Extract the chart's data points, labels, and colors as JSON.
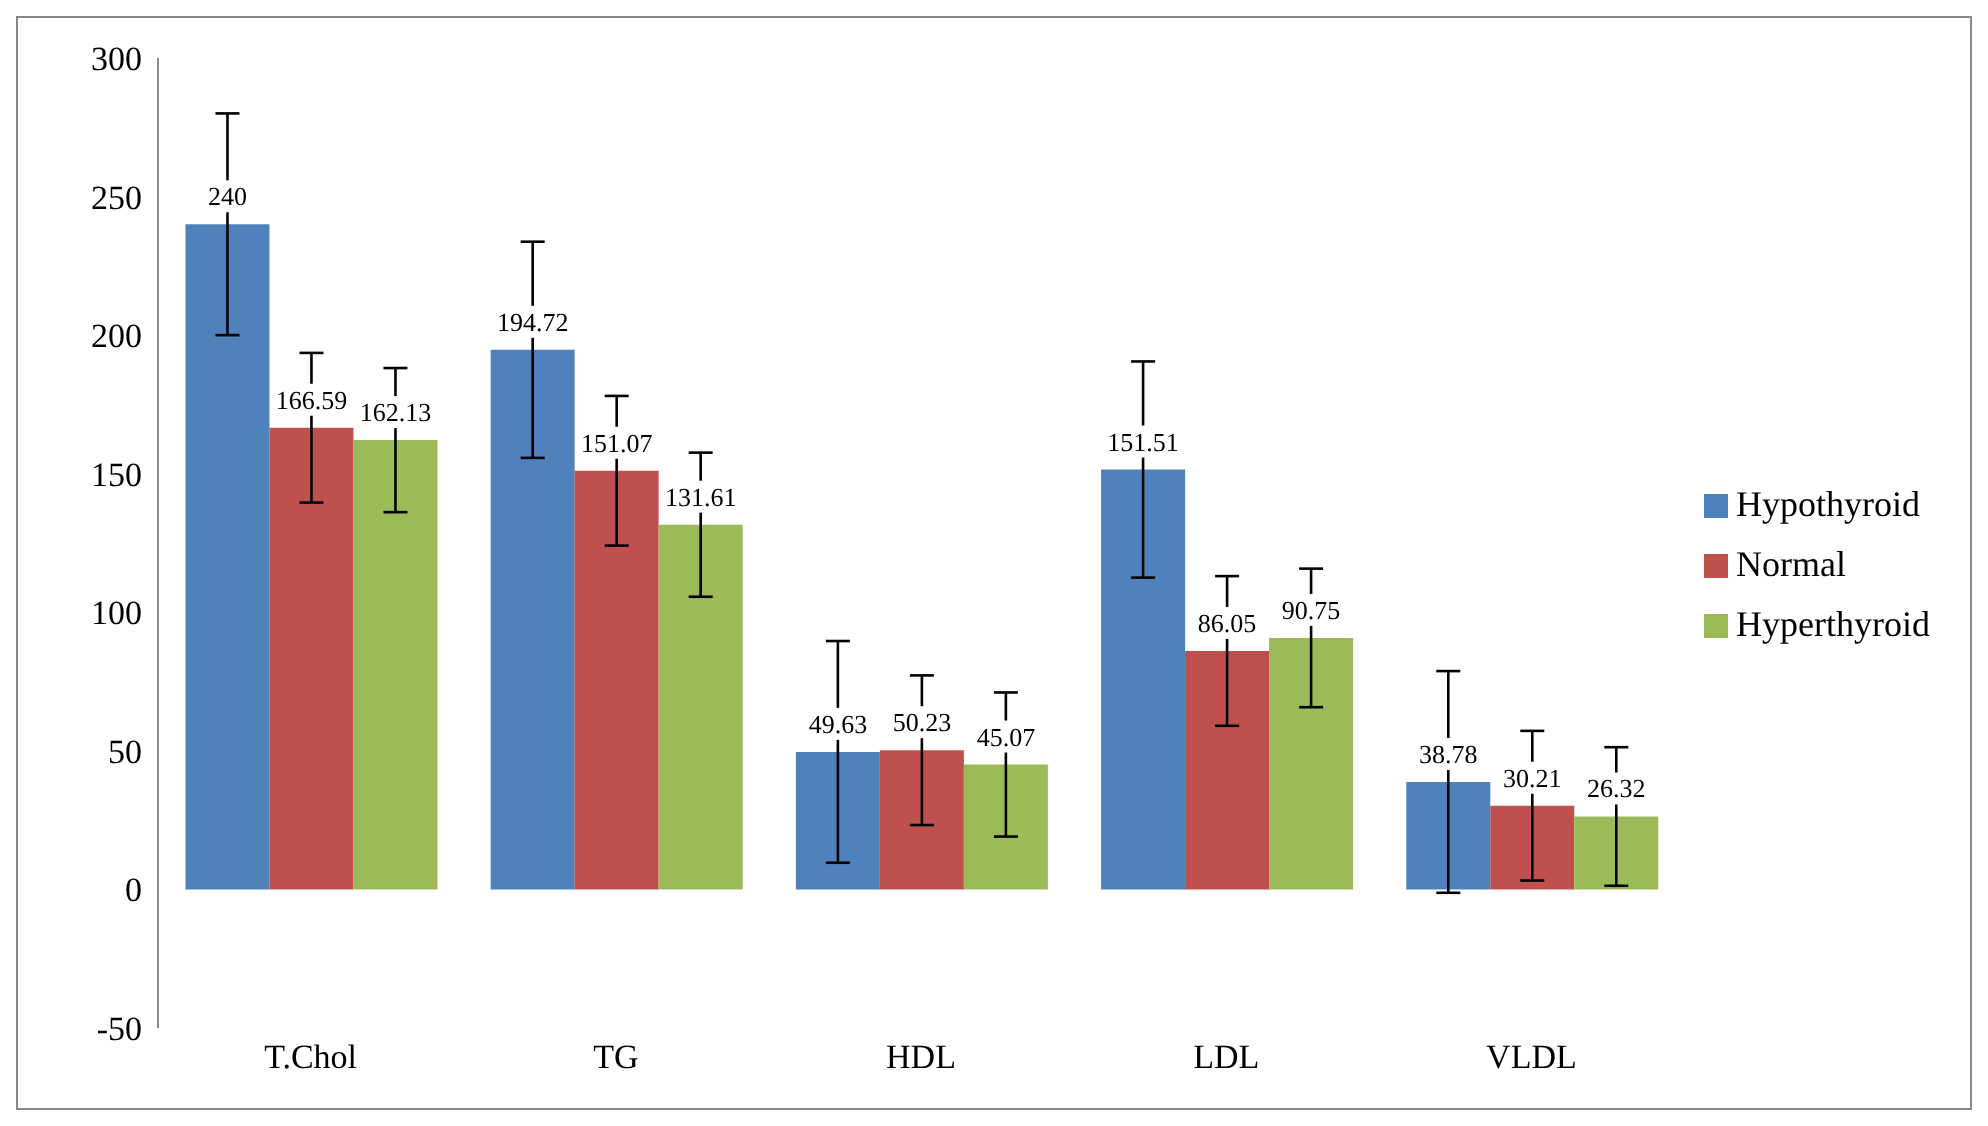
{
  "chart_data": {
    "type": "bar",
    "categories": [
      "T.Chol",
      "TG",
      "HDL",
      "LDL",
      "VLDL"
    ],
    "series": [
      {
        "name": "Hypothyroid",
        "color": "#4f81bd",
        "values": [
          240,
          194.72,
          49.63,
          151.51,
          38.78
        ],
        "errors": [
          40,
          39,
          40,
          39,
          40
        ]
      },
      {
        "name": "Normal",
        "color": "#c0504d",
        "values": [
          166.59,
          151.07,
          50.23,
          86.05,
          30.21
        ],
        "errors": [
          27,
          27,
          27,
          27,
          27
        ]
      },
      {
        "name": "Hyperthyroid",
        "color": "#9bbb59",
        "values": [
          162.13,
          131.61,
          45.07,
          90.75,
          26.32
        ],
        "errors": [
          26,
          26,
          26,
          25,
          25
        ]
      }
    ],
    "ylim": [
      -50,
      300
    ],
    "yticks": [
      -50,
      0,
      50,
      100,
      150,
      200,
      250,
      300
    ],
    "grid": false,
    "legend": "right",
    "data_labels": true
  }
}
